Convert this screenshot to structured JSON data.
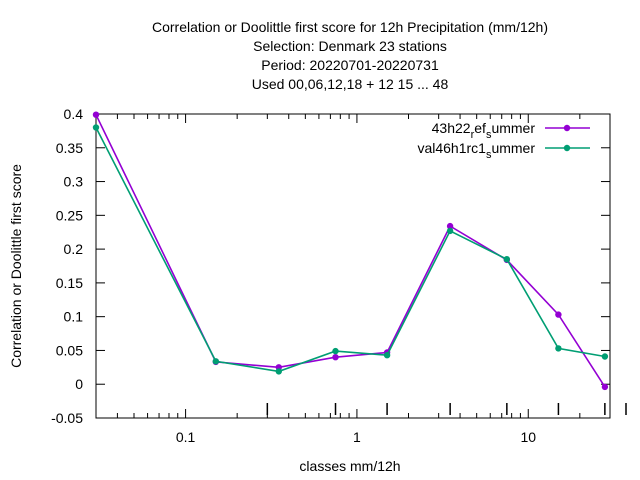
{
  "chart_data": {
    "type": "line",
    "title_lines": [
      "Correlation or Doolittle first score  for 12h Precipitation (mm/12h)",
      "Selection: Denmark     23 stations",
      "Period: 20220701-20220731",
      "Used  00,06,12,18  + 12 15 ... 48"
    ],
    "xlabel": "classes mm/12h",
    "ylabel": "Correlation or Doolittle first score",
    "x_scale": "log",
    "xlim": [
      0.03,
      30
    ],
    "ylim": [
      -0.05,
      0.4
    ],
    "x_ticks": [
      {
        "value": 0.1,
        "label": "0.1"
      },
      {
        "value": 1,
        "label": "1"
      },
      {
        "value": 10,
        "label": "10"
      }
    ],
    "y_ticks": [
      {
        "value": 0.4,
        "label": "0.4"
      },
      {
        "value": 0.35,
        "label": "0.35"
      },
      {
        "value": 0.3,
        "label": "0.3"
      },
      {
        "value": 0.25,
        "label": "0.25"
      },
      {
        "value": 0.2,
        "label": "0.2"
      },
      {
        "value": 0.15,
        "label": "0.15"
      },
      {
        "value": 0.1,
        "label": "0.1"
      },
      {
        "value": 0.05,
        "label": "0.05"
      },
      {
        "value": 0,
        "label": "0"
      },
      {
        "value": -0.05,
        "label": "-0.05"
      }
    ],
    "grid": false,
    "legend_position": "top-right",
    "series": [
      {
        "legend_parts": [
          {
            "text": "43h22",
            "shift": "none"
          },
          {
            "text": "r",
            "shift": "sub"
          },
          {
            "text": "ef",
            "shift": "none"
          },
          {
            "text": "s",
            "shift": "sub"
          },
          {
            "text": "ummer",
            "shift": "none"
          }
        ],
        "color": "#9400d3",
        "x": [
          0.03,
          0.15,
          0.35,
          0.75,
          1.5,
          3.5,
          7.5,
          15,
          28
        ],
        "values": [
          0.399,
          0.033,
          0.025,
          0.04,
          0.047,
          0.234,
          0.184,
          0.103,
          -0.004
        ]
      },
      {
        "legend_parts": [
          {
            "text": "val46h1rc1",
            "shift": "none"
          },
          {
            "text": "s",
            "shift": "sub"
          },
          {
            "text": "ummer",
            "shift": "none"
          }
        ],
        "color": "#009e73",
        "x": [
          0.03,
          0.15,
          0.35,
          0.75,
          1.5,
          3.5,
          7.5,
          15,
          28
        ],
        "values": [
          0.38,
          0.034,
          0.019,
          0.049,
          0.043,
          0.227,
          0.185,
          0.053,
          0.041
        ]
      }
    ]
  }
}
